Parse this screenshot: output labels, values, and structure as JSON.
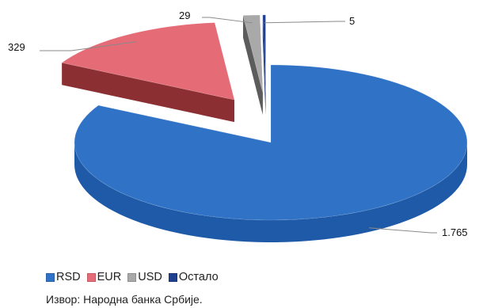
{
  "chart_data": {
    "type": "pie",
    "style": "3d-exploded",
    "categories": [
      "RSD",
      "EUR",
      "USD",
      "Остало"
    ],
    "values": [
      1765,
      329,
      29,
      5
    ],
    "value_labels": [
      "1.765",
      "329",
      "29",
      "5"
    ],
    "colors": [
      "#2f72c6",
      "#e56b76",
      "#a9a9a9",
      "#1f3f8f"
    ],
    "side_colors": [
      "#1f5aa8",
      "#8c2f33",
      "#5c5c5c",
      "#0e2563"
    ],
    "legend": {
      "placement": "bottom-left",
      "items": [
        {
          "label": "RSD",
          "color": "#2f72c6"
        },
        {
          "label": "EUR",
          "color": "#e56b76"
        },
        {
          "label": "USD",
          "color": "#a9a9a9"
        },
        {
          "label": "Остало",
          "color": "#1f3f8f"
        }
      ]
    }
  },
  "source_note": "Извор: Народна банка Србије."
}
